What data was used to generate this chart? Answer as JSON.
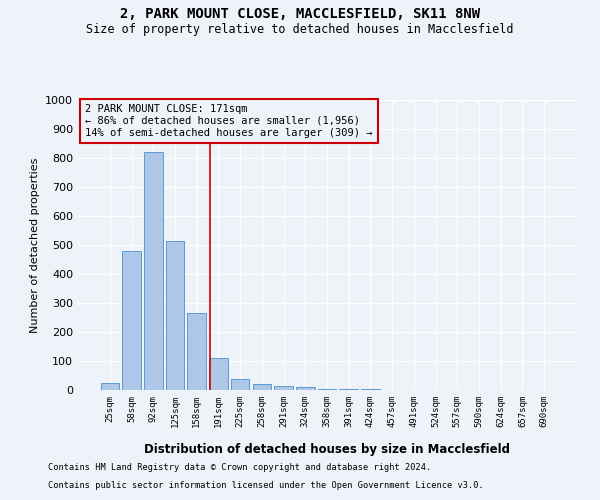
{
  "title": "2, PARK MOUNT CLOSE, MACCLESFIELD, SK11 8NW",
  "subtitle": "Size of property relative to detached houses in Macclesfield",
  "xlabel": "Distribution of detached houses by size in Macclesfield",
  "ylabel": "Number of detached properties",
  "footnote1": "Contains HM Land Registry data © Crown copyright and database right 2024.",
  "footnote2": "Contains public sector information licensed under the Open Government Licence v3.0.",
  "bin_labels": [
    "25sqm",
    "58sqm",
    "92sqm",
    "125sqm",
    "158sqm",
    "191sqm",
    "225sqm",
    "258sqm",
    "291sqm",
    "324sqm",
    "358sqm",
    "391sqm",
    "424sqm",
    "457sqm",
    "491sqm",
    "524sqm",
    "557sqm",
    "590sqm",
    "624sqm",
    "657sqm",
    "690sqm"
  ],
  "bar_values": [
    25,
    480,
    820,
    515,
    265,
    110,
    38,
    20,
    15,
    10,
    5,
    3,
    2,
    1,
    0,
    0,
    0,
    0,
    0,
    0,
    0
  ],
  "bar_color": "#aec6e8",
  "bar_edgecolor": "#5b9bd5",
  "ylim": [
    0,
    1000
  ],
  "yticks": [
    0,
    100,
    200,
    300,
    400,
    500,
    600,
    700,
    800,
    900,
    1000
  ],
  "property_line_x": 4.63,
  "property_line_color": "#cc0000",
  "annotation_text": "2 PARK MOUNT CLOSE: 171sqm\n← 86% of detached houses are smaller (1,956)\n14% of semi-detached houses are larger (309) →",
  "annotation_box_color": "#cc0000",
  "bg_color": "#eef2f9",
  "grid_color": "#ffffff",
  "title_fontsize": 10,
  "subtitle_fontsize": 8.5,
  "annot_fontsize": 7.5,
  "ylabel_fontsize": 8,
  "xlabel_fontsize": 8.5,
  "footnote_fontsize": 6.2,
  "ytick_fontsize": 8,
  "xtick_fontsize": 6.5
}
